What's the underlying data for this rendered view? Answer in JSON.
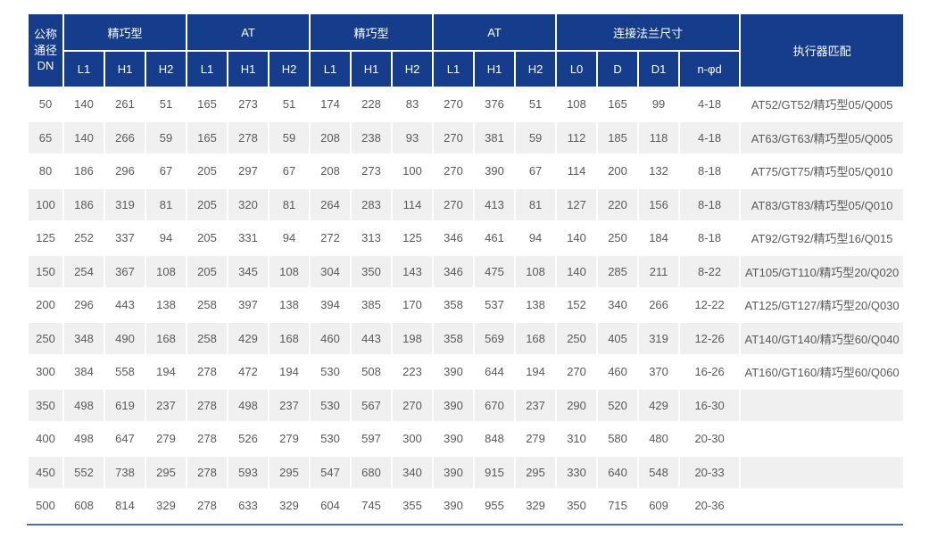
{
  "colors": {
    "header_bg": "#163d8c",
    "header_text": "#ffffff",
    "row_stripe": "#f0f0f0",
    "cell_text": "#5a5a5a",
    "bottom_rule": "#4a6fb5"
  },
  "table": {
    "header": {
      "col_dn": "公称\n通径\nDN",
      "groups": [
        {
          "label": "精巧型",
          "cols": [
            "L1",
            "H1",
            "H2"
          ]
        },
        {
          "label": "AT",
          "cols": [
            "L1",
            "H1",
            "H2"
          ]
        },
        {
          "label": "精巧型",
          "cols": [
            "L1",
            "H1",
            "H2"
          ]
        },
        {
          "label": "AT",
          "cols": [
            "L1",
            "H1",
            "H2"
          ]
        },
        {
          "label": "连接法兰尺寸",
          "cols": [
            "L0",
            "D",
            "D1",
            "n-φd"
          ]
        }
      ],
      "col_actuator": "执行器匹配"
    },
    "rows": [
      {
        "dn": "50",
        "values": [
          "140",
          "261",
          "51",
          "165",
          "273",
          "51",
          "174",
          "228",
          "83",
          "270",
          "376",
          "51",
          "108",
          "165",
          "99",
          "4-18"
        ],
        "actuator": "AT52/GT52/精巧型05/Q005"
      },
      {
        "dn": "65",
        "values": [
          "140",
          "266",
          "59",
          "165",
          "278",
          "59",
          "208",
          "238",
          "93",
          "270",
          "381",
          "59",
          "112",
          "185",
          "118",
          "4-18"
        ],
        "actuator": "AT63/GT63/精巧型05/Q005"
      },
      {
        "dn": "80",
        "values": [
          "186",
          "296",
          "67",
          "205",
          "297",
          "67",
          "208",
          "273",
          "100",
          "270",
          "390",
          "67",
          "114",
          "200",
          "132",
          "8-18"
        ],
        "actuator": "AT75/GT75/精巧型05/Q010"
      },
      {
        "dn": "100",
        "values": [
          "186",
          "319",
          "81",
          "205",
          "320",
          "81",
          "264",
          "283",
          "114",
          "270",
          "413",
          "81",
          "127",
          "220",
          "156",
          "8-18"
        ],
        "actuator": "AT83/GT83/精巧型05/Q010"
      },
      {
        "dn": "125",
        "values": [
          "252",
          "337",
          "94",
          "205",
          "331",
          "94",
          "272",
          "313",
          "125",
          "346",
          "461",
          "94",
          "140",
          "250",
          "184",
          "8-18"
        ],
        "actuator": "AT92/GT92/精巧型16/Q015"
      },
      {
        "dn": "150",
        "values": [
          "254",
          "367",
          "108",
          "205",
          "345",
          "108",
          "304",
          "350",
          "143",
          "346",
          "475",
          "108",
          "140",
          "285",
          "211",
          "8-22"
        ],
        "actuator": "AT105/GT110/精巧型20/Q020"
      },
      {
        "dn": "200",
        "values": [
          "296",
          "443",
          "138",
          "258",
          "397",
          "138",
          "394",
          "385",
          "170",
          "358",
          "537",
          "138",
          "152",
          "340",
          "266",
          "12-22"
        ],
        "actuator": "AT125/GT127/精巧型20/Q030"
      },
      {
        "dn": "250",
        "values": [
          "348",
          "490",
          "168",
          "258",
          "429",
          "168",
          "460",
          "443",
          "198",
          "358",
          "569",
          "168",
          "250",
          "405",
          "319",
          "12-26"
        ],
        "actuator": "AT140/GT140/精巧型60/Q040"
      },
      {
        "dn": "300",
        "values": [
          "384",
          "558",
          "194",
          "278",
          "472",
          "194",
          "530",
          "508",
          "223",
          "390",
          "644",
          "194",
          "270",
          "460",
          "370",
          "16-26"
        ],
        "actuator": "AT160/GT160/精巧型60/Q060"
      },
      {
        "dn": "350",
        "values": [
          "498",
          "619",
          "237",
          "278",
          "498",
          "237",
          "530",
          "567",
          "270",
          "390",
          "670",
          "237",
          "290",
          "520",
          "429",
          "16-30"
        ],
        "actuator": ""
      },
      {
        "dn": "400",
        "values": [
          "498",
          "647",
          "279",
          "278",
          "526",
          "279",
          "530",
          "597",
          "300",
          "390",
          "848",
          "279",
          "310",
          "580",
          "480",
          "20-30"
        ],
        "actuator": ""
      },
      {
        "dn": "450",
        "values": [
          "552",
          "738",
          "295",
          "278",
          "593",
          "295",
          "547",
          "680",
          "340",
          "390",
          "915",
          "295",
          "330",
          "640",
          "548",
          "20-33"
        ],
        "actuator": ""
      },
      {
        "dn": "500",
        "values": [
          "608",
          "814",
          "329",
          "278",
          "633",
          "329",
          "604",
          "745",
          "355",
          "390",
          "955",
          "329",
          "350",
          "715",
          "609",
          "20-36"
        ],
        "actuator": ""
      }
    ]
  }
}
